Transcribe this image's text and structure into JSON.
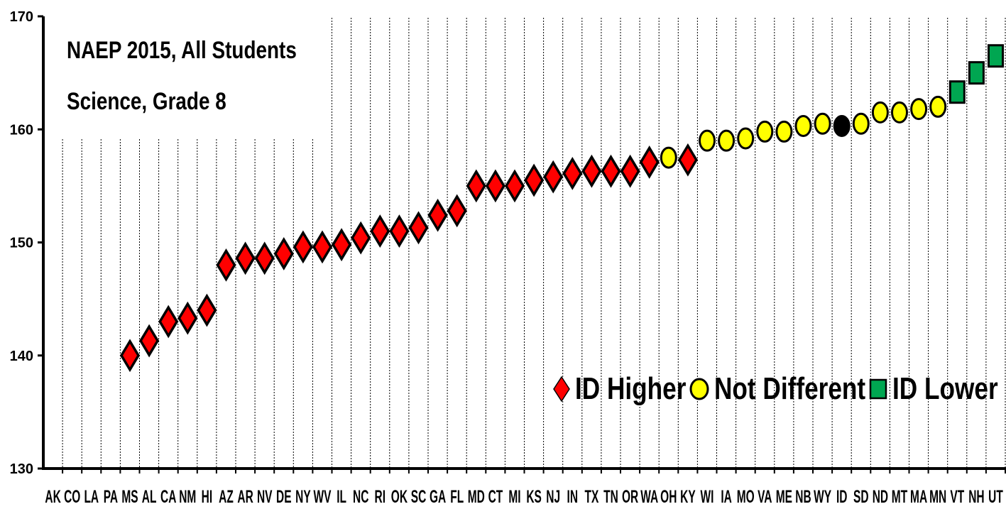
{
  "chart_data": {
    "type": "scatter",
    "title": "NAEP 2015, All Students",
    "subtitle": "Science, Grade 8",
    "ylim": [
      130,
      170
    ],
    "yticks": [
      130,
      140,
      150,
      160,
      170
    ],
    "ytick_labels": [
      "130",
      "140",
      "150",
      "160",
      "170"
    ],
    "grid": "vertical dashed lines",
    "legend": {
      "placement": "bottom-right",
      "entries": [
        {
          "key": "higher",
          "label": "ID Higher",
          "marker": "diamond",
          "color": "#ff0000"
        },
        {
          "key": "same",
          "label": "Not Different",
          "marker": "circle",
          "color": "#ffff00"
        },
        {
          "key": "lower",
          "label": "ID Lower",
          "marker": "square",
          "color": "#00a651"
        }
      ]
    },
    "reference": {
      "state": "ID",
      "marker": "circle",
      "color": "#000000"
    },
    "categories": [
      "AK",
      "CO",
      "LA",
      "PA",
      "MS",
      "AL",
      "CA",
      "NM",
      "HI",
      "AZ",
      "AR",
      "NV",
      "DE",
      "NY",
      "WV",
      "IL",
      "NC",
      "RI",
      "OK",
      "SC",
      "GA",
      "FL",
      "MD",
      "CT",
      "MI",
      "KS",
      "NJ",
      "IN",
      "TX",
      "TN",
      "OR",
      "WA",
      "OH",
      "KY",
      "WI",
      "IA",
      "MO",
      "VA",
      "ME",
      "NB",
      "WY",
      "ID",
      "SD",
      "ND",
      "MT",
      "MA",
      "MN",
      "VT",
      "NH",
      "UT"
    ],
    "points": [
      {
        "state": "MS",
        "value": 140,
        "group": "higher"
      },
      {
        "state": "AL",
        "value": 141.3,
        "group": "higher"
      },
      {
        "state": "CA",
        "value": 143,
        "group": "higher"
      },
      {
        "state": "NM",
        "value": 143.3,
        "group": "higher"
      },
      {
        "state": "HI",
        "value": 144,
        "group": "higher"
      },
      {
        "state": "AZ",
        "value": 148,
        "group": "higher"
      },
      {
        "state": "AR",
        "value": 148.6,
        "group": "higher"
      },
      {
        "state": "NV",
        "value": 148.6,
        "group": "higher"
      },
      {
        "state": "DE",
        "value": 149,
        "group": "higher"
      },
      {
        "state": "NY",
        "value": 149.6,
        "group": "higher"
      },
      {
        "state": "WV",
        "value": 149.6,
        "group": "higher"
      },
      {
        "state": "IL",
        "value": 149.8,
        "group": "higher"
      },
      {
        "state": "NC",
        "value": 150.4,
        "group": "higher"
      },
      {
        "state": "RI",
        "value": 151,
        "group": "higher"
      },
      {
        "state": "OK",
        "value": 151,
        "group": "higher"
      },
      {
        "state": "SC",
        "value": 151.3,
        "group": "higher"
      },
      {
        "state": "GA",
        "value": 152.4,
        "group": "higher"
      },
      {
        "state": "FL",
        "value": 152.8,
        "group": "higher"
      },
      {
        "state": "MD",
        "value": 155,
        "group": "higher"
      },
      {
        "state": "CT",
        "value": 155,
        "group": "higher"
      },
      {
        "state": "MI",
        "value": 155,
        "group": "higher"
      },
      {
        "state": "KS",
        "value": 155.5,
        "group": "higher"
      },
      {
        "state": "NJ",
        "value": 155.8,
        "group": "higher"
      },
      {
        "state": "IN",
        "value": 156.1,
        "group": "higher"
      },
      {
        "state": "TX",
        "value": 156.3,
        "group": "higher"
      },
      {
        "state": "TN",
        "value": 156.3,
        "group": "higher"
      },
      {
        "state": "OR",
        "value": 156.3,
        "group": "higher"
      },
      {
        "state": "WA",
        "value": 157.1,
        "group": "higher"
      },
      {
        "state": "OH",
        "value": 157.5,
        "group": "same"
      },
      {
        "state": "KY",
        "value": 157.3,
        "group": "higher"
      },
      {
        "state": "WI",
        "value": 159,
        "group": "same"
      },
      {
        "state": "IA",
        "value": 159,
        "group": "same"
      },
      {
        "state": "MO",
        "value": 159.2,
        "group": "same"
      },
      {
        "state": "VA",
        "value": 159.8,
        "group": "same"
      },
      {
        "state": "ME",
        "value": 159.8,
        "group": "same"
      },
      {
        "state": "NB",
        "value": 160.3,
        "group": "same"
      },
      {
        "state": "WY",
        "value": 160.5,
        "group": "same"
      },
      {
        "state": "ID",
        "value": 160.3,
        "group": "reference"
      },
      {
        "state": "SD",
        "value": 160.5,
        "group": "same"
      },
      {
        "state": "ND",
        "value": 161.5,
        "group": "same"
      },
      {
        "state": "MT",
        "value": 161.5,
        "group": "same"
      },
      {
        "state": "MA",
        "value": 161.8,
        "group": "same"
      },
      {
        "state": "MN",
        "value": 162,
        "group": "same"
      },
      {
        "state": "VT",
        "value": 163.3,
        "group": "lower"
      },
      {
        "state": "NH",
        "value": 165,
        "group": "lower"
      },
      {
        "state": "UT",
        "value": 166.5,
        "group": "lower"
      }
    ]
  }
}
